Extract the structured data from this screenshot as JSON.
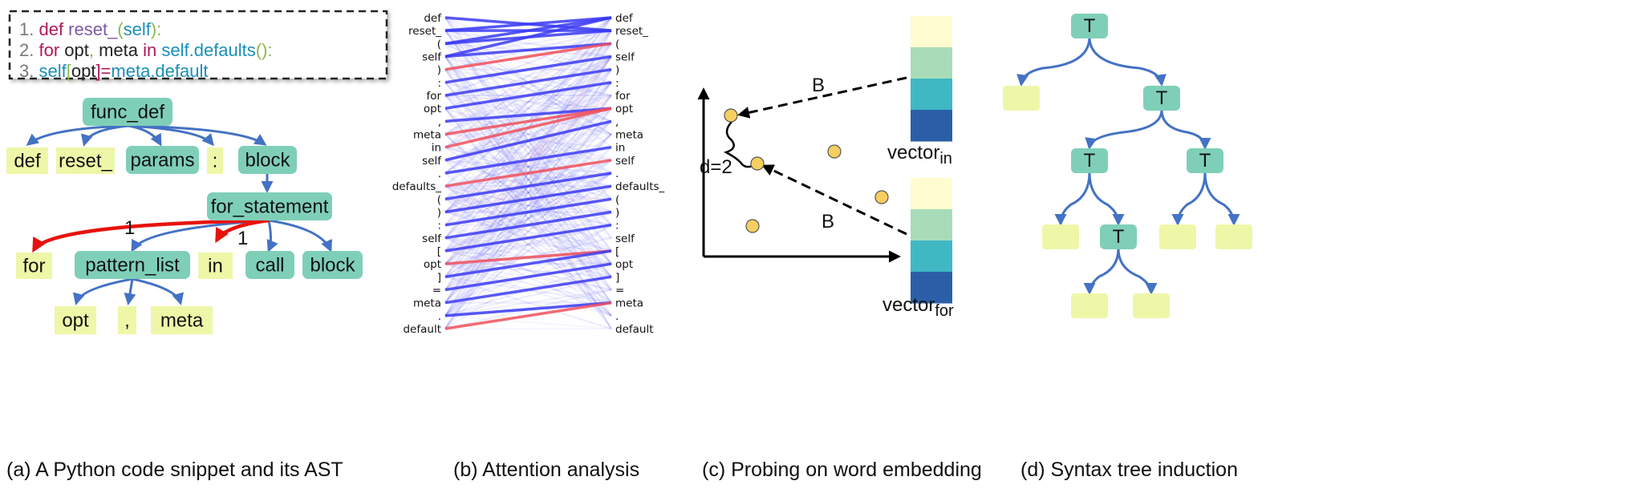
{
  "colors": {
    "node_teal": "#7fcfb8",
    "leaf_yellow": "#eef7a8",
    "edge_blue": "#4472c4",
    "edge_red": "#e8120c",
    "attn_blue": "#3b3bf5",
    "attn_red": "#f0505a"
  },
  "code": {
    "lines": [
      [
        {
          "t": "1. ",
          "c": "#777777"
        },
        {
          "t": "def ",
          "c": "#b0185a"
        },
        {
          "t": "reset_",
          "c": "#7d5aa8"
        },
        {
          "t": "(",
          "c": "#8cb84a"
        },
        {
          "t": "self",
          "c": "#1a8fb8"
        },
        {
          "t": "):",
          "c": "#8cb84a"
        }
      ],
      [
        {
          "t": "2. ",
          "c": "#777777"
        },
        {
          "t": "for ",
          "c": "#b0185a"
        },
        {
          "t": "opt",
          "c": "#222222"
        },
        {
          "t": ", ",
          "c": "#8cb84a"
        },
        {
          "t": "meta ",
          "c": "#222222"
        },
        {
          "t": "in ",
          "c": "#b0185a"
        },
        {
          "t": "self.defaults",
          "c": "#1a8fb8"
        },
        {
          "t": "():",
          "c": "#8cb84a"
        }
      ],
      [
        {
          "t": "3.          ",
          "c": "#777777"
        },
        {
          "t": "self",
          "c": "#1a8fb8"
        },
        {
          "t": "[",
          "c": "#8cb84a"
        },
        {
          "t": "opt",
          "c": "#222222"
        },
        {
          "t": "]=",
          "c": "#b0185a"
        },
        {
          "t": "meta.default",
          "c": "#1a8fb8"
        }
      ]
    ]
  },
  "ast": {
    "root": "func_def",
    "children": [
      "def",
      "reset_",
      "params",
      ":",
      "block"
    ],
    "for_statement": "for_statement",
    "for_children": [
      "for",
      "pattern_list",
      "in",
      "call",
      "block"
    ],
    "pattern_children": [
      "opt",
      ",",
      "meta"
    ],
    "edge_label_1": "1",
    "edge_label_2": "1"
  },
  "attention": {
    "tokens": [
      "def",
      "reset_",
      "(",
      "self",
      ")",
      ":",
      "for",
      "opt",
      ",",
      "meta",
      "in",
      "self",
      ".",
      "defaults_",
      "(",
      ")",
      ":",
      "self",
      "[",
      "opt",
      "]",
      "=",
      "meta",
      ".",
      "default"
    ],
    "strong_links": [
      [
        1,
        1,
        "b"
      ],
      [
        1,
        0,
        "b"
      ],
      [
        2,
        1,
        "b"
      ],
      [
        3,
        2,
        "b"
      ],
      [
        4,
        2,
        "r"
      ],
      [
        5,
        3,
        "b"
      ],
      [
        6,
        4,
        "b"
      ],
      [
        7,
        5,
        "b"
      ],
      [
        8,
        7,
        "b"
      ],
      [
        9,
        7,
        "r"
      ],
      [
        10,
        7,
        "r"
      ],
      [
        11,
        8,
        "b"
      ],
      [
        12,
        10,
        "b"
      ],
      [
        13,
        11,
        "r"
      ],
      [
        14,
        12,
        "b"
      ],
      [
        15,
        13,
        "b"
      ],
      [
        16,
        14,
        "b"
      ],
      [
        17,
        15,
        "b"
      ],
      [
        18,
        16,
        "b"
      ],
      [
        19,
        18,
        "r"
      ],
      [
        20,
        18,
        "b"
      ],
      [
        21,
        19,
        "b"
      ],
      [
        22,
        20,
        "b"
      ],
      [
        23,
        22,
        "b"
      ],
      [
        24,
        22,
        "r"
      ],
      [
        0,
        1,
        "b"
      ],
      [
        3,
        0,
        "b"
      ],
      [
        2,
        0,
        "b"
      ]
    ]
  },
  "probe": {
    "label_b1": "B",
    "label_b2": "B",
    "distance": "d=2",
    "vector_in": "vector",
    "vector_in_sub": "in",
    "vector_for": "vector",
    "vector_for_sub": "for",
    "vector_colors": [
      "#fffdd0",
      "#a8dcb8",
      "#3fb8c4",
      "#2a5fa8"
    ]
  },
  "tree": {
    "node": "T"
  },
  "captions": {
    "a": "(a) A Python code snippet and its AST",
    "b": "(b) Attention analysis",
    "c": "(c) Probing on word embedding",
    "d": "(d) Syntax tree induction"
  }
}
